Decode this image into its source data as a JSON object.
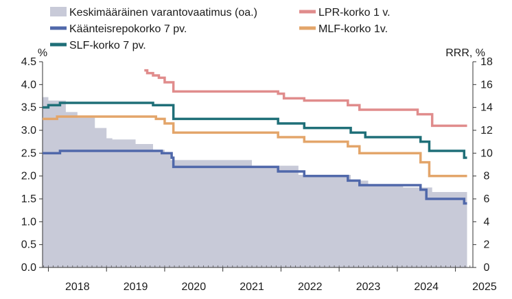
{
  "chart_data": {
    "type": "line",
    "y_left": {
      "unit_label": "%",
      "ylim": [
        0,
        4.5
      ],
      "ticks": [
        "0.0",
        "0.5",
        "1.0",
        "1.5",
        "2.0",
        "2.5",
        "3.0",
        "3.5",
        "4.0",
        "4.5"
      ]
    },
    "y_right": {
      "unit_label": "RRR, %",
      "ylim": [
        0,
        18
      ],
      "ticks": [
        "0",
        "2",
        "4",
        "6",
        "8",
        "10",
        "12",
        "14",
        "16",
        "18"
      ]
    },
    "x": {
      "range": [
        2017.9,
        2025.3
      ],
      "ticks": [
        "2018",
        "2019",
        "2020",
        "2021",
        "2022",
        "2023",
        "2024",
        "2025"
      ]
    },
    "grid": false,
    "legend_position": "top",
    "series": [
      {
        "name": "Keskimääräinen varantovaatimus (oa.)",
        "kind": "area",
        "axis": "right",
        "color": "#c8cad8",
        "points": [
          [
            2017.9,
            14.9
          ],
          [
            2018.0,
            14.6
          ],
          [
            2018.3,
            13.6
          ],
          [
            2018.5,
            13.1
          ],
          [
            2018.8,
            12.2
          ],
          [
            2019.0,
            11.3
          ],
          [
            2019.1,
            11.2
          ],
          [
            2019.5,
            10.8
          ],
          [
            2019.8,
            10.3
          ],
          [
            2020.0,
            10.0
          ],
          [
            2020.1,
            9.4
          ],
          [
            2020.3,
            9.4
          ],
          [
            2021.3,
            9.4
          ],
          [
            2021.5,
            8.9
          ],
          [
            2021.9,
            8.9
          ],
          [
            2022.3,
            8.1
          ],
          [
            2022.5,
            8.1
          ],
          [
            2022.8,
            8.1
          ],
          [
            2023.2,
            7.6
          ],
          [
            2023.5,
            7.2
          ],
          [
            2023.8,
            7.2
          ],
          [
            2024.1,
            7.0
          ],
          [
            2024.6,
            6.6
          ],
          [
            2025.2,
            6.6
          ]
        ]
      },
      {
        "name": "Käänteisrepokorko 7 pv.",
        "kind": "step",
        "axis": "left",
        "color": "#5068aa",
        "points": [
          [
            2017.9,
            2.5
          ],
          [
            2018.2,
            2.55
          ],
          [
            2019.95,
            2.5
          ],
          [
            2020.12,
            2.4
          ],
          [
            2020.15,
            2.2
          ],
          [
            2021.95,
            2.1
          ],
          [
            2022.4,
            2.0
          ],
          [
            2023.15,
            1.9
          ],
          [
            2023.35,
            1.8
          ],
          [
            2024.4,
            1.7
          ],
          [
            2024.5,
            1.5
          ],
          [
            2025.1,
            1.5
          ],
          [
            2025.15,
            1.4
          ],
          [
            2025.2,
            1.4
          ]
        ]
      },
      {
        "name": "SLF-korko 7 pv.",
        "kind": "step",
        "axis": "left",
        "color": "#1f6f78",
        "points": [
          [
            2017.9,
            3.5
          ],
          [
            2018.0,
            3.55
          ],
          [
            2018.2,
            3.6
          ],
          [
            2019.8,
            3.55
          ],
          [
            2020.15,
            3.25
          ],
          [
            2021.95,
            3.15
          ],
          [
            2022.4,
            3.05
          ],
          [
            2023.2,
            2.95
          ],
          [
            2023.45,
            2.85
          ],
          [
            2024.4,
            2.75
          ],
          [
            2024.55,
            2.55
          ],
          [
            2025.15,
            2.4
          ],
          [
            2025.2,
            2.4
          ]
        ]
      },
      {
        "name": "LPR-korko 1 v.",
        "kind": "step",
        "axis": "left",
        "color": "#e08c8c",
        "points": [
          [
            2019.65,
            4.31
          ],
          [
            2019.7,
            4.25
          ],
          [
            2019.8,
            4.2
          ],
          [
            2019.9,
            4.15
          ],
          [
            2020.0,
            4.05
          ],
          [
            2020.15,
            3.85
          ],
          [
            2021.95,
            3.8
          ],
          [
            2022.05,
            3.7
          ],
          [
            2022.4,
            3.65
          ],
          [
            2023.15,
            3.55
          ],
          [
            2023.35,
            3.45
          ],
          [
            2024.35,
            3.35
          ],
          [
            2024.6,
            3.1
          ],
          [
            2025.2,
            3.1
          ]
        ]
      },
      {
        "name": "MLF-korko 1v.",
        "kind": "step",
        "axis": "left",
        "color": "#e3a56a",
        "points": [
          [
            2017.9,
            3.25
          ],
          [
            2018.15,
            3.3
          ],
          [
            2019.85,
            3.25
          ],
          [
            2020.0,
            3.15
          ],
          [
            2020.15,
            2.95
          ],
          [
            2021.95,
            2.85
          ],
          [
            2022.4,
            2.75
          ],
          [
            2023.15,
            2.65
          ],
          [
            2023.35,
            2.5
          ],
          [
            2024.4,
            2.3
          ],
          [
            2024.55,
            2.0
          ],
          [
            2025.2,
            2.0
          ]
        ]
      }
    ]
  }
}
